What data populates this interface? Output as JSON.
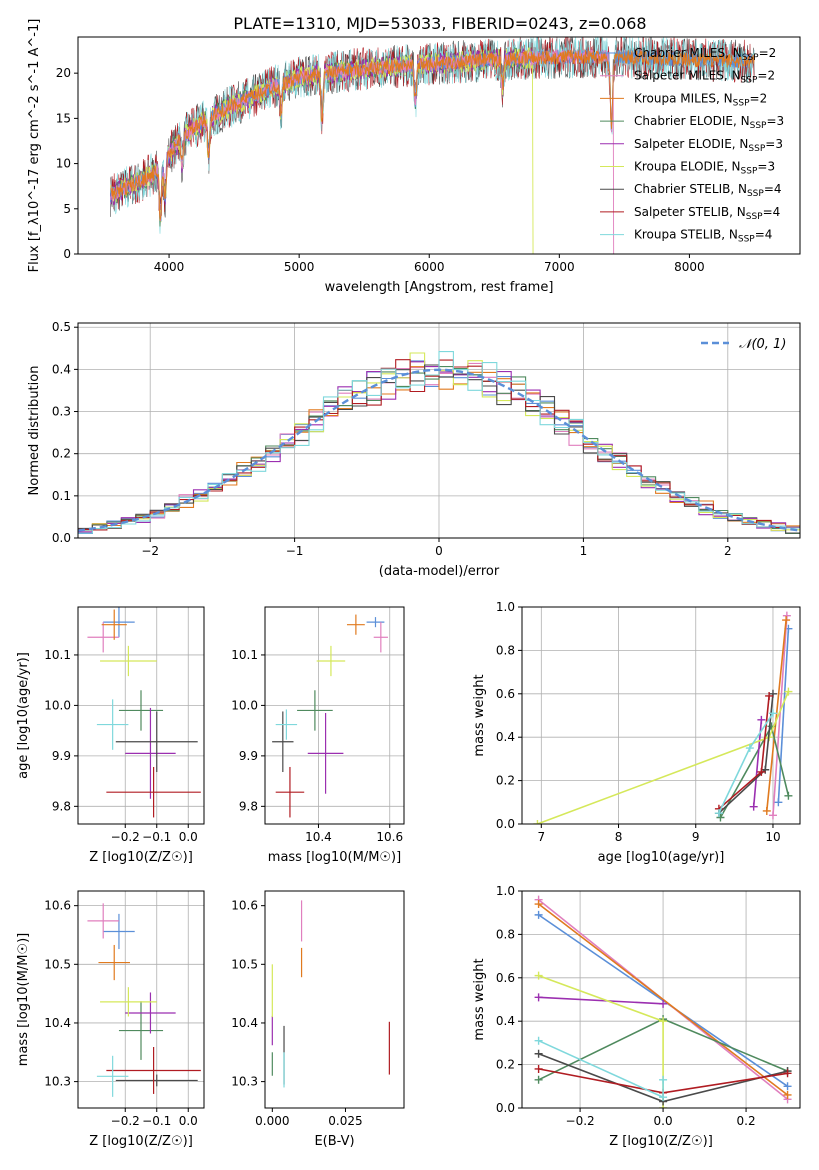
{
  "figure": {
    "title": "PLATE=1310, MJD=53033, FIBERID=0243, z=0.068"
  },
  "colors": {
    "Chabrier MILES": "#5b8fd8",
    "Salpeter MILES": "#e07fbe",
    "Kroupa MILES": "#e07a1f",
    "Chabrier ELODIE": "#4f8a5e",
    "Salpeter ELODIE": "#9b2fb0",
    "Kroupa ELODIE": "#d5e85a",
    "Chabrier STELIB": "#4a4a4a",
    "Salpeter STELIB": "#b01c22",
    "Kroupa STELIB": "#7fd8dc",
    "normal": "#5b8fd8",
    "grid": "#b0b0b0"
  },
  "chart_data": [
    {
      "id": "spectrum",
      "type": "line",
      "xlabel": "wavelength [Angstrom, rest frame]",
      "ylabel": "Flux [f_λ10^-17 erg cm^-2 s^-1 A^-1]",
      "xlim": [
        3300,
        8850
      ],
      "ylim": [
        0,
        24
      ],
      "xticks": [
        4000,
        5000,
        6000,
        7000,
        8000
      ],
      "yticks": [
        0,
        5,
        10,
        15,
        20
      ],
      "grid": false,
      "legend_position": "right",
      "legend": [
        {
          "model": "Chabrier MILES",
          "nssp": "2"
        },
        {
          "model": "Salpeter MILES",
          "nssp": "2"
        },
        {
          "model": "Kroupa MILES",
          "nssp": "2"
        },
        {
          "model": "Chabrier ELODIE",
          "nssp": "3"
        },
        {
          "model": "Salpeter ELODIE",
          "nssp": "3"
        },
        {
          "model": "Kroupa ELODIE",
          "nssp": "3"
        },
        {
          "model": "Chabrier STELIB",
          "nssp": "4"
        },
        {
          "model": "Salpeter STELIB",
          "nssp": "4"
        },
        {
          "model": "Kroupa STELIB",
          "nssp": "4"
        }
      ],
      "continuum": {
        "x": [
          3550,
          3700,
          3900,
          4000,
          4100,
          4300,
          4500,
          4800,
          5000,
          5200,
          5500,
          6000,
          6500,
          7000,
          7500,
          8000,
          8500
        ],
        "y": [
          6.5,
          7.5,
          9.0,
          11.0,
          13.0,
          15.0,
          16.5,
          18.5,
          19.5,
          20.0,
          20.5,
          21.0,
          21.5,
          21.8,
          21.8,
          21.5,
          21.3
        ]
      },
      "dips": [
        {
          "x": 3934,
          "depth": 6.0
        },
        {
          "x": 3969,
          "depth": 4.0
        },
        {
          "x": 4101,
          "depth": 3.0
        },
        {
          "x": 4304,
          "depth": 4.0
        },
        {
          "x": 4861,
          "depth": 3.0
        },
        {
          "x": 5175,
          "depth": 5.0
        },
        {
          "x": 5893,
          "depth": 4.0
        },
        {
          "x": 6563,
          "depth": 3.0
        },
        {
          "x": 7400,
          "depth": 8.0
        }
      ],
      "deep_drops": [
        {
          "x": 6800,
          "series": "Kroupa ELODIE"
        },
        {
          "x": 7420,
          "series": "Salpeter MILES"
        }
      ]
    },
    {
      "id": "residuals",
      "type": "step",
      "xlabel": "(data-model)/error",
      "ylabel": "Normed distribution",
      "xlim": [
        -2.5,
        2.5
      ],
      "ylim": [
        0,
        0.51
      ],
      "xticks": [
        -2,
        -1,
        0,
        1,
        2
      ],
      "yticks": [
        0.0,
        0.1,
        0.2,
        0.3,
        0.4,
        0.5
      ],
      "grid": true,
      "legend_position": "upper right",
      "legend": "𝒩(0, 1)",
      "normal_curve": {
        "mean": 0,
        "sigma": 1
      },
      "bin_width": 0.1
    },
    {
      "id": "age-vs-Z",
      "type": "errorbar",
      "xlabel": "Z [log10(Z/Z☉)]",
      "ylabel": "age  [log10(age/yr)]",
      "xlim": [
        -0.35,
        0.05
      ],
      "ylim": [
        9.765,
        10.195
      ],
      "xticks": [
        -0.2,
        -0.1,
        0.0
      ],
      "yticks": [
        9.8,
        9.9,
        10.0,
        10.1
      ],
      "grid": true,
      "points": [
        {
          "series": "Chabrier MILES",
          "x": -0.22,
          "xerr": 0.05,
          "y": 10.165,
          "yerr": 0.03
        },
        {
          "series": "Salpeter MILES",
          "x": -0.27,
          "xerr": 0.05,
          "y": 10.135,
          "yerr": 0.03
        },
        {
          "series": "Kroupa MILES",
          "x": -0.235,
          "xerr": 0.04,
          "y": 10.16,
          "yerr": 0.03
        },
        {
          "series": "Chabrier ELODIE",
          "x": -0.15,
          "xerr": 0.07,
          "y": 9.99,
          "yerr": 0.04
        },
        {
          "series": "Salpeter ELODIE",
          "x": -0.12,
          "xerr": 0.08,
          "y": 9.905,
          "yerr": 0.09
        },
        {
          "series": "Kroupa ELODIE",
          "x": -0.19,
          "xerr": 0.09,
          "y": 10.088,
          "yerr": 0.03
        },
        {
          "series": "Chabrier STELIB",
          "x": -0.1,
          "xerr": 0.13,
          "y": 9.928,
          "yerr": 0.06
        },
        {
          "series": "Salpeter STELIB",
          "x": -0.11,
          "xerr": 0.15,
          "y": 9.828,
          "yerr": 0.05
        },
        {
          "series": "Kroupa STELIB",
          "x": -0.24,
          "xerr": 0.05,
          "y": 9.962,
          "yerr": 0.05
        }
      ]
    },
    {
      "id": "age-vs-mass",
      "type": "errorbar",
      "xlabel": "mass [log10(M/M☉)]",
      "ylabel": "",
      "xlim": [
        10.25,
        10.64
      ],
      "ylim": [
        9.765,
        10.195
      ],
      "xticks": [
        10.4,
        10.6
      ],
      "yticks": [
        9.8,
        9.9,
        10.0,
        10.1
      ],
      "grid": true,
      "points": [
        {
          "series": "Chabrier MILES",
          "x": 10.56,
          "xerr": 0.025,
          "y": 10.165,
          "yerr": 0.01
        },
        {
          "series": "Salpeter MILES",
          "x": 10.575,
          "xerr": 0.02,
          "y": 10.135,
          "yerr": 0.03
        },
        {
          "series": "Kroupa MILES",
          "x": 10.505,
          "xerr": 0.025,
          "y": 10.16,
          "yerr": 0.02
        },
        {
          "series": "Chabrier ELODIE",
          "x": 10.39,
          "xerr": 0.05,
          "y": 9.99,
          "yerr": 0.04
        },
        {
          "series": "Salpeter ELODIE",
          "x": 10.42,
          "xerr": 0.05,
          "y": 9.905,
          "yerr": 0.08
        },
        {
          "series": "Kroupa ELODIE",
          "x": 10.435,
          "xerr": 0.04,
          "y": 10.088,
          "yerr": 0.03
        },
        {
          "series": "Chabrier STELIB",
          "x": 10.3,
          "xerr": 0.03,
          "y": 9.928,
          "yerr": 0.06
        },
        {
          "series": "Salpeter STELIB",
          "x": 10.32,
          "xerr": 0.04,
          "y": 9.828,
          "yerr": 0.05
        },
        {
          "series": "Kroupa STELIB",
          "x": 10.31,
          "xerr": 0.03,
          "y": 9.962,
          "yerr": 0.03
        }
      ]
    },
    {
      "id": "mass-weight-vs-age",
      "type": "line",
      "xlabel": "age  [log10(age/yr)]",
      "ylabel": "mass weight",
      "xlim": [
        6.75,
        10.35
      ],
      "ylim": [
        0,
        1.0
      ],
      "xticks": [
        7,
        8,
        9,
        10
      ],
      "yticks": [
        0.0,
        0.2,
        0.4,
        0.6,
        0.8,
        1.0
      ],
      "grid": true,
      "series": [
        {
          "name": "Chabrier MILES",
          "x": [
            10.07,
            10.2
          ],
          "y": [
            0.1,
            0.9
          ]
        },
        {
          "name": "Salpeter MILES",
          "x": [
            10.0,
            10.18
          ],
          "y": [
            0.04,
            0.96
          ]
        },
        {
          "name": "Kroupa MILES",
          "x": [
            9.92,
            10.17
          ],
          "y": [
            0.06,
            0.94
          ]
        },
        {
          "name": "Chabrier ELODIE",
          "x": [
            9.32,
            9.98,
            10.2
          ],
          "y": [
            0.03,
            0.45,
            0.13
          ]
        },
        {
          "name": "Salpeter ELODIE",
          "x": [
            9.75,
            9.85
          ],
          "y": [
            0.08,
            0.48
          ]
        },
        {
          "name": "Kroupa ELODIE",
          "x": [
            6.95,
            9.95,
            10.2
          ],
          "y": [
            0.0,
            0.4,
            0.61
          ]
        },
        {
          "name": "Chabrier STELIB",
          "x": [
            9.3,
            9.9,
            10.0
          ],
          "y": [
            0.05,
            0.25,
            0.6
          ]
        },
        {
          "name": "Salpeter STELIB",
          "x": [
            9.3,
            9.85,
            9.95
          ],
          "y": [
            0.07,
            0.24,
            0.59
          ]
        },
        {
          "name": "Kroupa STELIB",
          "x": [
            9.3,
            9.7,
            10.0
          ],
          "y": [
            0.05,
            0.35,
            0.51
          ]
        }
      ]
    },
    {
      "id": "mass-vs-Z",
      "type": "errorbar",
      "xlabel": "Z [log10(Z/Z☉)]",
      "ylabel": "mass [log10(M/M☉)]",
      "xlim": [
        -0.35,
        0.05
      ],
      "ylim": [
        10.255,
        10.625
      ],
      "xticks": [
        -0.2,
        -0.1,
        0.0
      ],
      "yticks": [
        10.3,
        10.4,
        10.5,
        10.6
      ],
      "grid": true,
      "points": [
        {
          "series": "Chabrier MILES",
          "x": -0.22,
          "xerr": 0.05,
          "y": 10.556,
          "yerr": 0.03
        },
        {
          "series": "Salpeter MILES",
          "x": -0.27,
          "xerr": 0.05,
          "y": 10.574,
          "yerr": 0.03
        },
        {
          "series": "Kroupa MILES",
          "x": -0.235,
          "xerr": 0.05,
          "y": 10.503,
          "yerr": 0.03
        },
        {
          "series": "Chabrier ELODIE",
          "x": -0.15,
          "xerr": 0.07,
          "y": 10.387,
          "yerr": 0.05
        },
        {
          "series": "Salpeter ELODIE",
          "x": -0.12,
          "xerr": 0.08,
          "y": 10.417,
          "yerr": 0.035
        },
        {
          "series": "Kroupa ELODIE",
          "x": -0.19,
          "xerr": 0.09,
          "y": 10.436,
          "yerr": 0.025
        },
        {
          "series": "Chabrier STELIB",
          "x": -0.1,
          "xerr": 0.13,
          "y": 10.302,
          "yerr": 0.01
        },
        {
          "series": "Salpeter STELIB",
          "x": -0.11,
          "xerr": 0.15,
          "y": 10.319,
          "yerr": 0.04
        },
        {
          "series": "Kroupa STELIB",
          "x": -0.24,
          "xerr": 0.05,
          "y": 10.309,
          "yerr": 0.035
        }
      ]
    },
    {
      "id": "mass-vs-ebv",
      "type": "errorbar",
      "xlabel": "E(B-V)",
      "ylabel": "",
      "xlim": [
        -0.0025,
        0.045
      ],
      "ylim": [
        10.255,
        10.625
      ],
      "xticks": [
        0.0,
        0.025
      ],
      "xticklabels": [
        "0.000",
        "0.025"
      ],
      "yticks": [
        10.3,
        10.4,
        10.5,
        10.6
      ],
      "grid": false,
      "points": [
        {
          "series": "Salpeter MILES",
          "x": 0.01,
          "xerr": 0,
          "y": 10.574,
          "yerr": 0.035
        },
        {
          "series": "Kroupa MILES",
          "x": 0.01,
          "xerr": 0,
          "y": 10.503,
          "yerr": 0.025
        },
        {
          "series": "Salpeter ELODIE",
          "x": 0.0,
          "xerr": 0,
          "y": 10.387,
          "yerr": 0.025
        },
        {
          "series": "Kroupa ELODIE",
          "x": 0.0,
          "xerr": 0,
          "y": 10.455,
          "yerr": 0.045
        },
        {
          "series": "Chabrier ELODIE",
          "x": 0.0,
          "xerr": 0,
          "y": 10.33,
          "yerr": 0.02
        },
        {
          "series": "Chabrier STELIB",
          "x": 0.004,
          "xerr": 0,
          "y": 10.345,
          "yerr": 0.05
        },
        {
          "series": "Salpeter STELIB",
          "x": 0.04,
          "xerr": 0,
          "y": 10.357,
          "yerr": 0.045
        },
        {
          "series": "Kroupa STELIB",
          "x": 0.004,
          "xerr": 0,
          "y": 10.32,
          "yerr": 0.03
        }
      ]
    },
    {
      "id": "mass-weight-vs-Z",
      "type": "line",
      "xlabel": "Z [log10(Z/Z☉)]",
      "ylabel": "mass weight",
      "xlim": [
        -0.34,
        0.33
      ],
      "ylim": [
        0,
        1.0
      ],
      "xticks": [
        -0.2,
        0.0,
        0.2
      ],
      "yticks": [
        0.0,
        0.2,
        0.4,
        0.6,
        0.8,
        1.0
      ],
      "grid": true,
      "series": [
        {
          "name": "Chabrier MILES",
          "x": [
            -0.3,
            0.3
          ],
          "y": [
            0.89,
            0.1
          ]
        },
        {
          "name": "Salpeter MILES",
          "x": [
            -0.3,
            0.3
          ],
          "y": [
            0.96,
            0.04
          ]
        },
        {
          "name": "Kroupa MILES",
          "x": [
            -0.3,
            0.3
          ],
          "y": [
            0.94,
            0.06
          ]
        },
        {
          "name": "Chabrier ELODIE",
          "x": [
            -0.3,
            0.0,
            0.3
          ],
          "y": [
            0.13,
            0.41,
            0.17
          ]
        },
        {
          "name": "Salpeter ELODIE",
          "x": [
            -0.3,
            0.0
          ],
          "y": [
            0.51,
            0.48
          ]
        },
        {
          "name": "Kroupa ELODIE",
          "x": [
            -0.3,
            0.0,
            0.0
          ],
          "y": [
            0.61,
            0.4,
            0.0
          ]
        },
        {
          "name": "Chabrier STELIB",
          "x": [
            -0.3,
            0.0,
            0.3
          ],
          "y": [
            0.25,
            0.03,
            0.17
          ]
        },
        {
          "name": "Salpeter STELIB",
          "x": [
            -0.3,
            0.0,
            0.3
          ],
          "y": [
            0.18,
            0.07,
            0.16
          ]
        },
        {
          "name": "Kroupa STELIB",
          "x": [
            -0.3,
            0.0,
            0.0
          ],
          "y": [
            0.31,
            0.05,
            0.13
          ]
        }
      ]
    }
  ]
}
